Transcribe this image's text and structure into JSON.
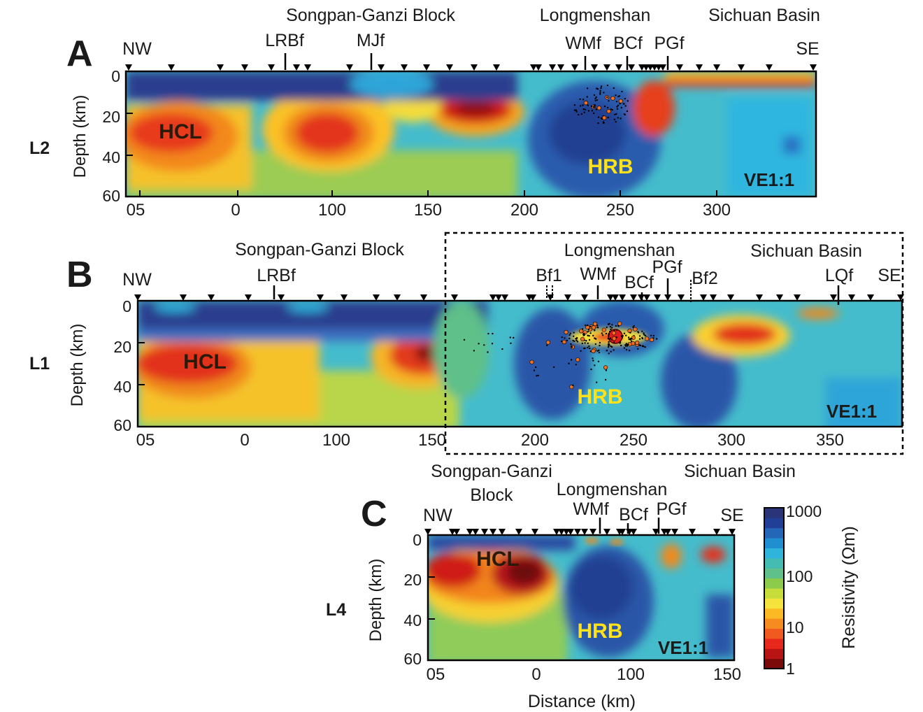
{
  "panels": [
    {
      "letter": "A",
      "line": "L2",
      "direction_left": "NW",
      "direction_right": "SE",
      "regions": [
        "Songpan-Ganzi Block",
        "Longmenshan",
        "Sichuan Basin"
      ],
      "faults": [
        "LRBf",
        "MJf",
        "WMf",
        "BCf",
        "PGf"
      ],
      "body_labels": [
        "HCL",
        "HRB"
      ],
      "ve": "VE1:1"
    },
    {
      "letter": "B",
      "line": "L1",
      "direction_left": "NW",
      "direction_right": "SE",
      "regions": [
        "Songpan-Ganzi Block",
        "Longmenshan",
        "Sichuan Basin"
      ],
      "faults": [
        "LRBf",
        "Bf1",
        "WMf",
        "BCf",
        "PGf",
        "Bf2",
        "LQf"
      ],
      "body_labels": [
        "HCL",
        "HRB"
      ],
      "ve": "VE1:1"
    },
    {
      "letter": "C",
      "line": "L4",
      "direction_left": "NW",
      "direction_right": "SE",
      "regions": [
        "Songpan-Ganzi",
        "Block",
        "Longmenshan",
        "Sichuan Basin"
      ],
      "faults": [
        "WMf",
        "BCf",
        "PGf"
      ],
      "body_labels": [
        "HCL",
        "HRB"
      ],
      "ve": "VE1:1"
    }
  ],
  "colorbar": {
    "label": "Resistivity (Ωm)",
    "ticks": [
      "1000",
      "100",
      "10",
      "1"
    ],
    "colors": [
      "#7a0a0a",
      "#b81414",
      "#e8271d",
      "#f05a1e",
      "#f68c1f",
      "#fbb924",
      "#f5e23a",
      "#c9dd3a",
      "#8ccb4c",
      "#5fc089",
      "#44bcb2",
      "#2fb5dc",
      "#1f8fd2",
      "#2466b8",
      "#223f97",
      "#2a3478"
    ]
  },
  "chart_data": [
    {
      "type": "heatmap",
      "title": "",
      "line": "L2",
      "xlabel": "",
      "ylabel": "Depth (km)",
      "x_ticks": [
        "05",
        "0",
        "100",
        "150",
        "200",
        "250",
        "300"
      ],
      "y_ticks": [
        "0",
        "20",
        "40",
        "60"
      ],
      "ylim": [
        0,
        60
      ],
      "fault_positions_km": {
        "LRBf": 75,
        "MJf": 122,
        "WMf": 232,
        "BCf": 252,
        "PGf": 272
      },
      "resistivity_bodies": [
        {
          "label": "HCL",
          "resistivity_ohm_m": 3,
          "center_km": 20,
          "depth_km": 28
        },
        {
          "label": "HRB",
          "resistivity_ohm_m": 800,
          "center_km": 240,
          "depth_km": 30
        }
      ],
      "vertical_exaggeration": "VE1:1"
    },
    {
      "type": "heatmap",
      "title": "",
      "line": "L1",
      "xlabel": "",
      "ylabel": "Depth (km)",
      "x_ticks": [
        "05",
        "0",
        "100",
        "150",
        "200",
        "250",
        "300",
        "350"
      ],
      "y_ticks": [
        "0",
        "20",
        "40",
        "60"
      ],
      "ylim": [
        0,
        60
      ],
      "fault_positions_km": {
        "LRBf": 65,
        "Bf1": 208,
        "WMf": 235,
        "BCf": 253,
        "PGf": 267,
        "Bf2": 280,
        "LQf": 352
      },
      "resistivity_bodies": [
        {
          "label": "HCL",
          "resistivity_ohm_m": 3,
          "center_km": 15,
          "depth_km": 30
        },
        {
          "label": "HRB",
          "resistivity_ohm_m": 800,
          "center_km": 240,
          "depth_km": 35
        }
      ],
      "mainshock_km": [
        242,
        15
      ],
      "vertical_exaggeration": "VE1:1"
    },
    {
      "type": "heatmap",
      "title": "",
      "line": "L4",
      "xlabel": "Distance (km)",
      "ylabel": "Depth (km)",
      "x_ticks": [
        "05",
        "0",
        "100",
        "150"
      ],
      "y_ticks": [
        "0",
        "20",
        "40",
        "60"
      ],
      "ylim": [
        0,
        60
      ],
      "fault_positions_km": {
        "WMf": 68,
        "BCf": 92,
        "PGf": 115
      },
      "resistivity_bodies": [
        {
          "label": "HCL",
          "resistivity_ohm_m": 2,
          "center_km": -10,
          "depth_km": 15
        },
        {
          "label": "HRB",
          "resistivity_ohm_m": 800,
          "center_km": 75,
          "depth_km": 35
        }
      ],
      "vertical_exaggeration": "VE1:1"
    }
  ]
}
